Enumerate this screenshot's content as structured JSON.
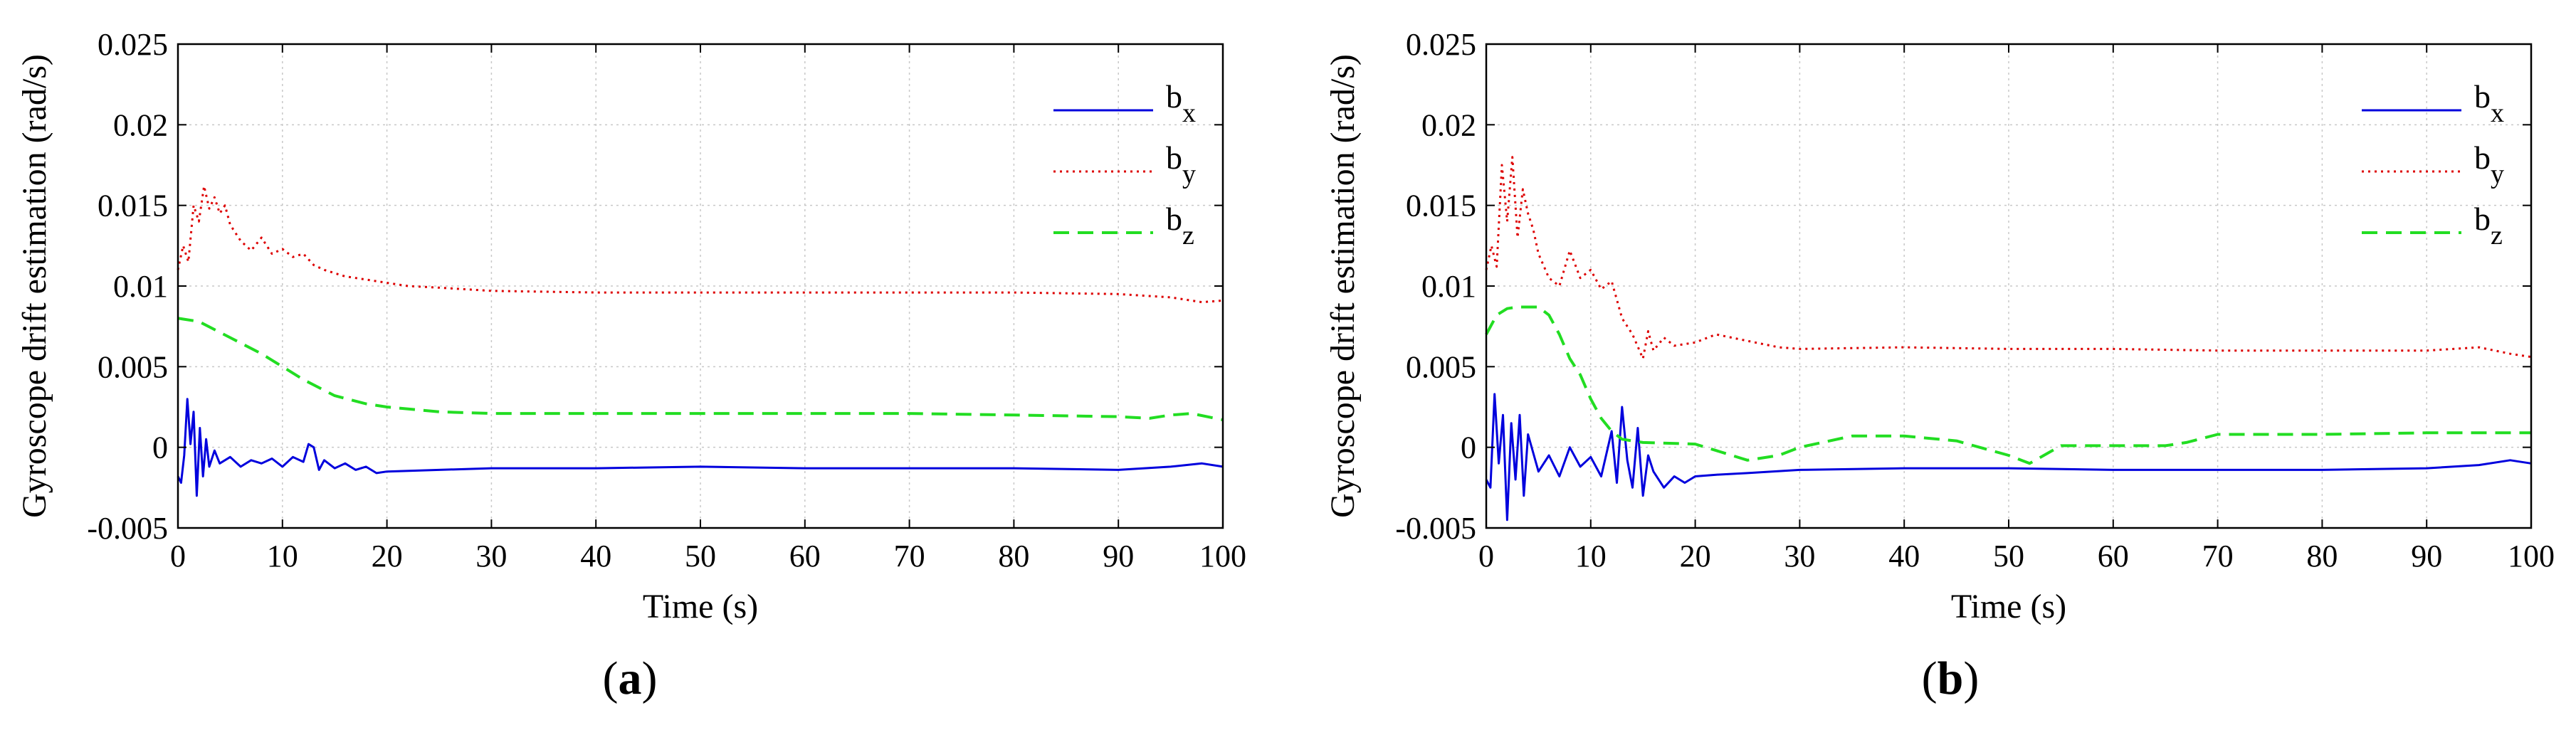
{
  "chart_data": [
    {
      "type": "line",
      "panel_label": "a",
      "xlabel": "Time (s)",
      "ylabel": "Gyroscope drift estimation (rad/s)",
      "xlim": [
        0,
        100
      ],
      "ylim": [
        -0.005,
        0.025
      ],
      "xticks": [
        "0",
        "10",
        "20",
        "30",
        "40",
        "50",
        "60",
        "70",
        "80",
        "90",
        "100"
      ],
      "yticks": [
        "-0.005",
        "0",
        "0.005",
        "0.01",
        "0.015",
        "0.02",
        "0.025"
      ],
      "grid": true,
      "legend_position": "top-right",
      "series": [
        {
          "name": "b",
          "subscript": "x",
          "color": "#0000dd",
          "style": "solid",
          "x": [
            0,
            0.3,
            0.6,
            0.9,
            1.2,
            1.5,
            1.8,
            2.1,
            2.4,
            2.7,
            3,
            3.5,
            4,
            5,
            6,
            7,
            8,
            9,
            10,
            11,
            12,
            12.5,
            13,
            13.5,
            14,
            15,
            16,
            17,
            18,
            19,
            20,
            25,
            30,
            40,
            50,
            60,
            70,
            80,
            90,
            95,
            98,
            100
          ],
          "y": [
            -0.0018,
            -0.0022,
            -0.0005,
            0.003,
            0.0002,
            0.0022,
            -0.003,
            0.0012,
            -0.0018,
            0.0005,
            -0.0012,
            -0.0002,
            -0.001,
            -0.0006,
            -0.0012,
            -0.0008,
            -0.001,
            -0.0007,
            -0.0012,
            -0.0006,
            -0.0009,
            0.0002,
            0.0,
            -0.0014,
            -0.0008,
            -0.0013,
            -0.001,
            -0.0014,
            -0.0012,
            -0.0016,
            -0.0015,
            -0.0014,
            -0.0013,
            -0.0013,
            -0.0012,
            -0.0013,
            -0.0013,
            -0.0013,
            -0.0014,
            -0.0012,
            -0.001,
            -0.0012
          ]
        },
        {
          "name": "b",
          "subscript": "y",
          "color": "#dd0000",
          "style": "dotted",
          "x": [
            0,
            0.5,
            1,
            1.5,
            2,
            2.5,
            3,
            3.5,
            4,
            4.5,
            5,
            6,
            7,
            8,
            9,
            10,
            11,
            12,
            13,
            14,
            15,
            16,
            17,
            18,
            20,
            22,
            25,
            30,
            40,
            50,
            60,
            70,
            80,
            90,
            95,
            98,
            100
          ],
          "y": [
            0.011,
            0.0125,
            0.0115,
            0.015,
            0.014,
            0.0162,
            0.0148,
            0.0155,
            0.0145,
            0.015,
            0.0138,
            0.0128,
            0.0122,
            0.013,
            0.012,
            0.0123,
            0.0118,
            0.012,
            0.0113,
            0.011,
            0.0108,
            0.0106,
            0.0105,
            0.0104,
            0.0102,
            0.01,
            0.0099,
            0.0097,
            0.0096,
            0.0096,
            0.0096,
            0.0096,
            0.0096,
            0.0095,
            0.0093,
            0.009,
            0.0091
          ]
        },
        {
          "name": "b",
          "subscript": "z",
          "color": "#22dd22",
          "style": "dashed",
          "x": [
            0,
            2,
            5,
            8,
            10,
            12,
            15,
            18,
            20,
            25,
            30,
            40,
            50,
            60,
            70,
            80,
            90,
            93,
            95,
            97,
            100
          ],
          "y": [
            0.008,
            0.0078,
            0.0068,
            0.0058,
            0.005,
            0.0042,
            0.0032,
            0.0027,
            0.0025,
            0.0022,
            0.0021,
            0.0021,
            0.0021,
            0.0021,
            0.0021,
            0.002,
            0.0019,
            0.0018,
            0.002,
            0.0021,
            0.0017
          ]
        }
      ]
    },
    {
      "type": "line",
      "panel_label": "b",
      "xlabel": "Time (s)",
      "ylabel": "Gyroscope drift estimation (rad/s)",
      "xlim": [
        0,
        100
      ],
      "ylim": [
        -0.005,
        0.025
      ],
      "xticks": [
        "0",
        "10",
        "20",
        "30",
        "40",
        "50",
        "60",
        "70",
        "80",
        "90",
        "100"
      ],
      "yticks": [
        "-0.005",
        "0",
        "0.005",
        "0.01",
        "0.015",
        "0.02",
        "0.025"
      ],
      "grid": true,
      "legend_position": "top-right",
      "series": [
        {
          "name": "b",
          "subscript": "x",
          "color": "#0000dd",
          "style": "solid",
          "x": [
            0,
            0.4,
            0.8,
            1.2,
            1.6,
            2,
            2.4,
            2.8,
            3.2,
            3.6,
            4,
            5,
            6,
            7,
            8,
            9,
            10,
            11,
            12,
            12.5,
            13,
            13.5,
            14,
            14.5,
            15,
            15.5,
            16,
            17,
            18,
            19,
            20,
            22,
            25,
            30,
            40,
            50,
            60,
            70,
            80,
            90,
            95,
            98,
            100
          ],
          "y": [
            -0.002,
            -0.0025,
            0.0033,
            -0.001,
            0.002,
            -0.0045,
            0.0015,
            -0.002,
            0.002,
            -0.003,
            0.0008,
            -0.0015,
            -0.0005,
            -0.0018,
            0.0,
            -0.0012,
            -0.0006,
            -0.0018,
            0.001,
            -0.0022,
            0.0025,
            -0.0008,
            -0.0025,
            0.0012,
            -0.003,
            -0.0005,
            -0.0015,
            -0.0025,
            -0.0018,
            -0.0022,
            -0.0018,
            -0.0017,
            -0.0016,
            -0.0014,
            -0.0013,
            -0.0013,
            -0.0014,
            -0.0014,
            -0.0014,
            -0.0013,
            -0.0011,
            -0.0008,
            -0.001
          ]
        },
        {
          "name": "b",
          "subscript": "y",
          "color": "#dd0000",
          "style": "dotted",
          "x": [
            0,
            0.5,
            1,
            1.5,
            2,
            2.5,
            3,
            3.5,
            4,
            4.5,
            5,
            6,
            7,
            8,
            9,
            10,
            11,
            12,
            13,
            14,
            15,
            15.5,
            16,
            17,
            18,
            20,
            22,
            25,
            28,
            30,
            40,
            50,
            60,
            70,
            80,
            90,
            95,
            98,
            100
          ],
          "y": [
            0.011,
            0.0125,
            0.0112,
            0.0175,
            0.014,
            0.018,
            0.013,
            0.016,
            0.0145,
            0.0135,
            0.012,
            0.0105,
            0.01,
            0.0122,
            0.0105,
            0.011,
            0.0098,
            0.0103,
            0.008,
            0.007,
            0.0055,
            0.0072,
            0.006,
            0.0068,
            0.0063,
            0.0065,
            0.007,
            0.0066,
            0.0062,
            0.0061,
            0.0062,
            0.0061,
            0.0061,
            0.006,
            0.006,
            0.006,
            0.0062,
            0.0058,
            0.0056
          ]
        },
        {
          "name": "b",
          "subscript": "z",
          "color": "#22dd22",
          "style": "dashed",
          "x": [
            0,
            1,
            2,
            3,
            4,
            5,
            6,
            7,
            8,
            9,
            10,
            11,
            12,
            13,
            15,
            20,
            25,
            28,
            30,
            35,
            40,
            45,
            50,
            52,
            55,
            60,
            65,
            67,
            70,
            80,
            90,
            100
          ],
          "y": [
            0.007,
            0.0082,
            0.0086,
            0.0087,
            0.0087,
            0.0087,
            0.0082,
            0.007,
            0.0055,
            0.0045,
            0.003,
            0.0018,
            0.001,
            0.0005,
            0.0003,
            0.0002,
            -0.0008,
            -0.0005,
            0.0,
            0.0007,
            0.0007,
            0.0004,
            -0.0005,
            -0.001,
            0.0001,
            0.0001,
            0.0001,
            0.0003,
            0.0008,
            0.0008,
            0.0009,
            0.0009
          ]
        }
      ]
    }
  ]
}
